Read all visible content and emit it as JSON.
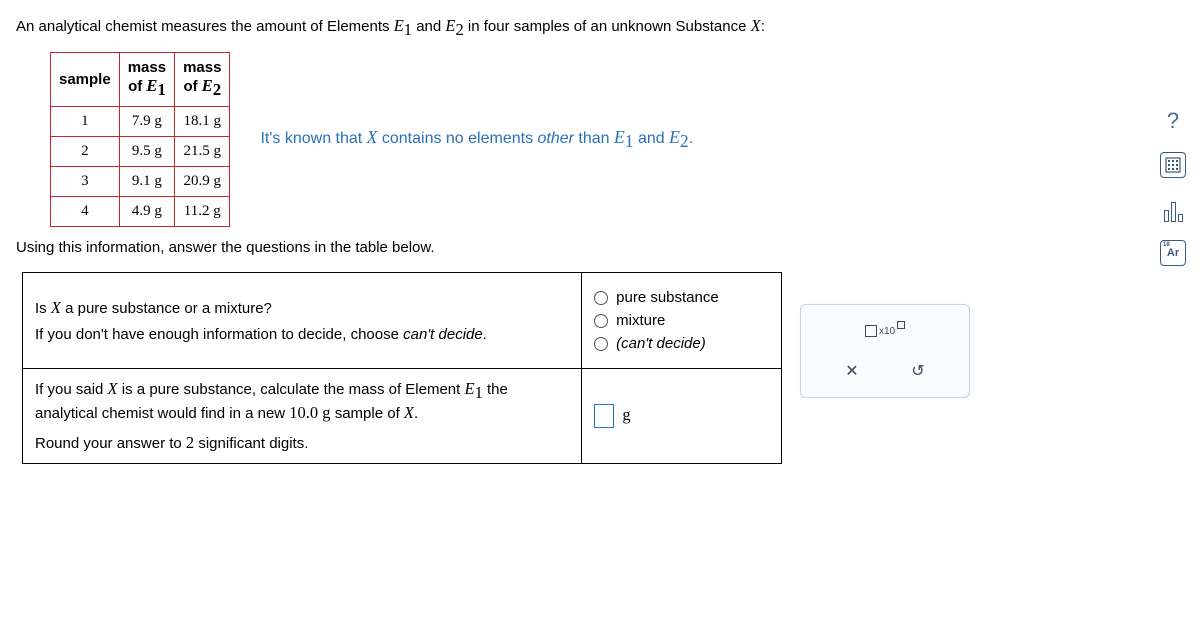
{
  "intro": {
    "prefix": "An analytical chemist measures the amount of Elements ",
    "e1": "E",
    "e1_sub": "1",
    "mid1": " and ",
    "e2": "E",
    "e2_sub": "2",
    "suffix": " in four samples of an unknown Substance ",
    "x": "X",
    "end": ":"
  },
  "table": {
    "h_sample": "sample",
    "h_mass_of": "mass of ",
    "h_e": "E",
    "sub1": "1",
    "sub2": "2",
    "rows": [
      {
        "n": "1",
        "e1": "7.9 g",
        "e2": "18.1 g"
      },
      {
        "n": "2",
        "e1": "9.5 g",
        "e2": "21.5 g"
      },
      {
        "n": "3",
        "e1": "9.1 g",
        "e2": "20.9 g"
      },
      {
        "n": "4",
        "e1": "4.9 g",
        "e2": "11.2 g"
      }
    ]
  },
  "hint": {
    "p1": "It's known that ",
    "x": "X",
    "p2": " contains no elements ",
    "other": "other",
    "p3": " than ",
    "e1": "E",
    "s1": "1",
    "and": " and ",
    "e2": "E",
    "s2": "2",
    "end": "."
  },
  "below": "Using this information, answer the questions in the table below.",
  "q1": {
    "line1a": "Is ",
    "x": "X",
    "line1b": " a pure substance or a mixture?",
    "line2a": "If you don't have enough information to decide, choose ",
    "cant": "can't decide",
    "line2b": "."
  },
  "opts": {
    "a": "pure substance",
    "b": "mixture",
    "c": "(can't decide)"
  },
  "q2": {
    "l1a": "If you said ",
    "x": "X",
    "l1b": " is a pure substance, calculate the mass of Element ",
    "e": "E",
    "s": "1",
    "l1c": " the",
    "l2a": "analytical chemist would find in a new ",
    "mass": "10.0 g",
    "l2b": " sample of ",
    "x2": "X",
    "l2c": ".",
    "l3": "Round your answer to ",
    "sig": "2",
    "l3b": " significant digits."
  },
  "ans2_unit": "g",
  "toolpanel": {
    "sci_label": "x10",
    "close": "✕",
    "undo": "↺"
  },
  "side": {
    "help": "?",
    "calc": "⊞",
    "bars": "₀▯₀",
    "ar": "Ar"
  }
}
